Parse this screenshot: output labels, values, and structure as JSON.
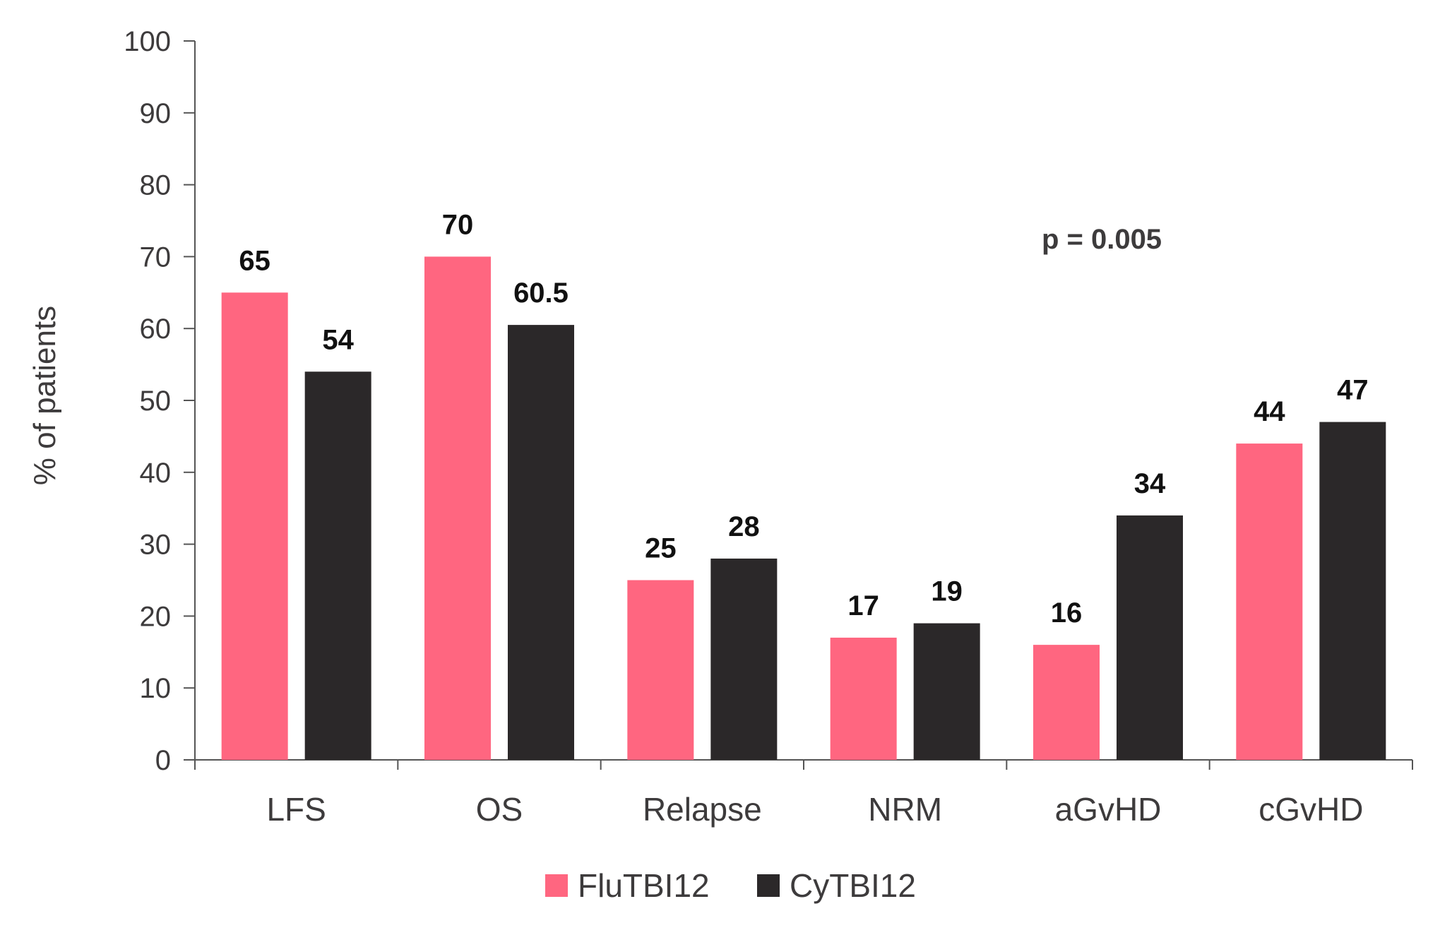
{
  "chart_data": {
    "type": "bar",
    "categories": [
      "LFS",
      "OS",
      "Relapse",
      "NRM",
      "aGvHD",
      "cGvHD"
    ],
    "series": [
      {
        "name": "FluTBI12",
        "color": "#ff6680",
        "values": [
          65,
          70,
          25,
          17,
          16,
          44
        ],
        "labels": [
          "65",
          "70",
          "25",
          "17",
          "16",
          "44"
        ]
      },
      {
        "name": "CyTBI12",
        "color": "#2b2829",
        "values": [
          54,
          60.5,
          28,
          19,
          34,
          47
        ],
        "labels": [
          "54",
          "60.5",
          "28",
          "19",
          "34",
          "47"
        ]
      }
    ],
    "ylabel": "% of patients",
    "ylim": [
      0,
      100
    ],
    "yticks": [
      "0",
      "10",
      "20",
      "30",
      "40",
      "50",
      "60",
      "70",
      "80",
      "90",
      "100"
    ],
    "annotation": "p = 0.005",
    "legend_position": "bottom-center",
    "grid": false
  }
}
